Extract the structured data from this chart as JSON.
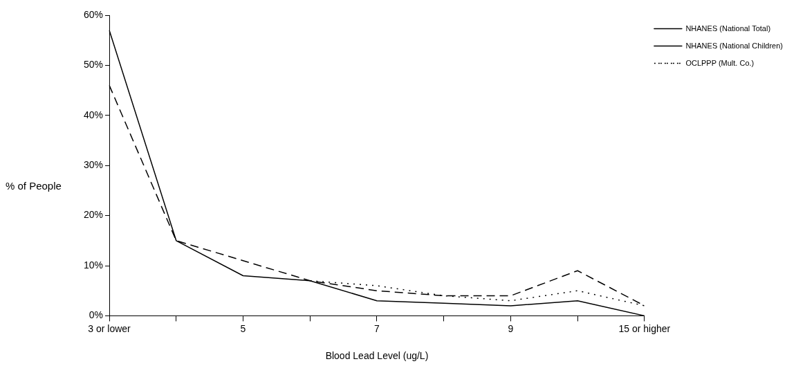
{
  "chart_data": {
    "type": "line",
    "xlabel": "Blood Lead Level (ug/L)",
    "ylabel": "% of People",
    "categories": [
      "3 or lower",
      null,
      "5",
      null,
      "7",
      null,
      "9",
      null,
      "15 or higher"
    ],
    "series": [
      {
        "name": "NHANES (National Total)",
        "color": "#000000",
        "line_style": "solid",
        "values": [
          57,
          15,
          8,
          7,
          3,
          2.5,
          2,
          3,
          0
        ]
      },
      {
        "name": "NHANES (National Children)",
        "color": "#000000",
        "line_style": "dashed",
        "values": [
          46,
          15,
          11,
          7,
          5,
          4,
          4,
          9,
          2
        ]
      },
      {
        "name": "OCLPPP (Mult. Co.)",
        "color": "#000000",
        "line_style": "dotted",
        "values": [
          null,
          null,
          null,
          7,
          6,
          4,
          3,
          5,
          2
        ]
      }
    ],
    "ylim": [
      0,
      60
    ],
    "yticks": [
      {
        "value": 0,
        "label": "0%"
      },
      {
        "value": 10,
        "label": "10%"
      },
      {
        "value": 20,
        "label": "20%"
      },
      {
        "value": 30,
        "label": "30%"
      },
      {
        "value": 40,
        "label": "40%"
      },
      {
        "value": 50,
        "label": "50%"
      },
      {
        "value": 60,
        "label": "60%"
      }
    ],
    "grid": false,
    "legend": "right",
    "marker": "none"
  }
}
